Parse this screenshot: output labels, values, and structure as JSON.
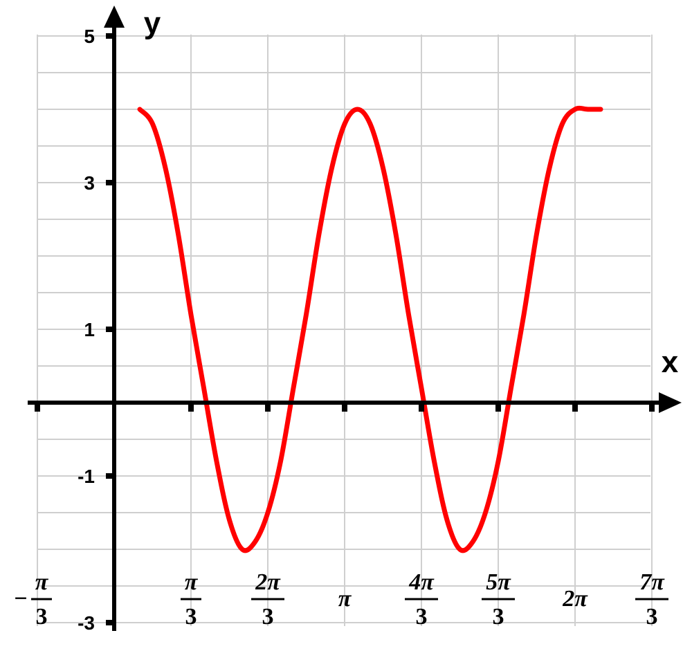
{
  "chart_data": {
    "type": "line",
    "title": "",
    "xlabel": "x",
    "ylabel": "y",
    "x_unit": "pi",
    "xlim": [
      -0.3333,
      2.3333
    ],
    "ylim": [
      -3,
      5
    ],
    "grid": true,
    "grid_minor_y": 0.5,
    "grid_major_y": 1,
    "x_ticks": [
      {
        "value": -0.3333,
        "sign": "−",
        "num": "π",
        "den": "3"
      },
      {
        "value": 0.3333,
        "sign": "",
        "num": "π",
        "den": "3"
      },
      {
        "value": 0.6667,
        "sign": "",
        "num": "2π",
        "den": "3"
      },
      {
        "value": 1.0,
        "sign": "",
        "num": "π",
        "den": ""
      },
      {
        "value": 1.3333,
        "sign": "",
        "num": "4π",
        "den": "3"
      },
      {
        "value": 1.6667,
        "sign": "",
        "num": "5π",
        "den": "3"
      },
      {
        "value": 2.0,
        "sign": "",
        "num": "2π",
        "den": ""
      },
      {
        "value": 2.3333,
        "sign": "",
        "num": "7π",
        "den": "3"
      }
    ],
    "y_ticks": [
      {
        "value": 5,
        "label": "5"
      },
      {
        "value": 3,
        "label": "3"
      },
      {
        "value": 1,
        "label": "1"
      },
      {
        "value": -1,
        "label": "-1"
      },
      {
        "value": -3,
        "label": "-3"
      }
    ],
    "series": [
      {
        "color": "#ff0000",
        "x": [
          0.1111,
          0.1667,
          0.2222,
          0.2778,
          0.3333,
          0.3889,
          0.4444,
          0.5,
          0.5556,
          0.6111,
          0.6667,
          0.7222,
          0.7778,
          0.8333,
          0.8889,
          0.9444,
          1.0,
          1.0556,
          1.1111,
          1.1667,
          1.2222,
          1.2778,
          1.3333,
          1.3889,
          1.4444,
          1.5,
          1.5556,
          1.6111,
          1.6667,
          1.7222,
          1.7778,
          1.8333,
          1.8889,
          1.9444,
          2.0,
          2.0556,
          2.1111
        ],
        "y": [
          4.0,
          3.8,
          3.2,
          2.3,
          1.2,
          0.2,
          -0.8,
          -1.6,
          -2.0,
          -1.9,
          -1.5,
          -0.8,
          0.2,
          1.2,
          2.3,
          3.2,
          3.8,
          4.0,
          3.8,
          3.2,
          2.3,
          1.2,
          0.2,
          -0.8,
          -1.6,
          -2.0,
          -1.9,
          -1.5,
          -0.8,
          0.2,
          1.2,
          2.3,
          3.2,
          3.8,
          4.0,
          4.0,
          4.0
        ]
      }
    ]
  }
}
